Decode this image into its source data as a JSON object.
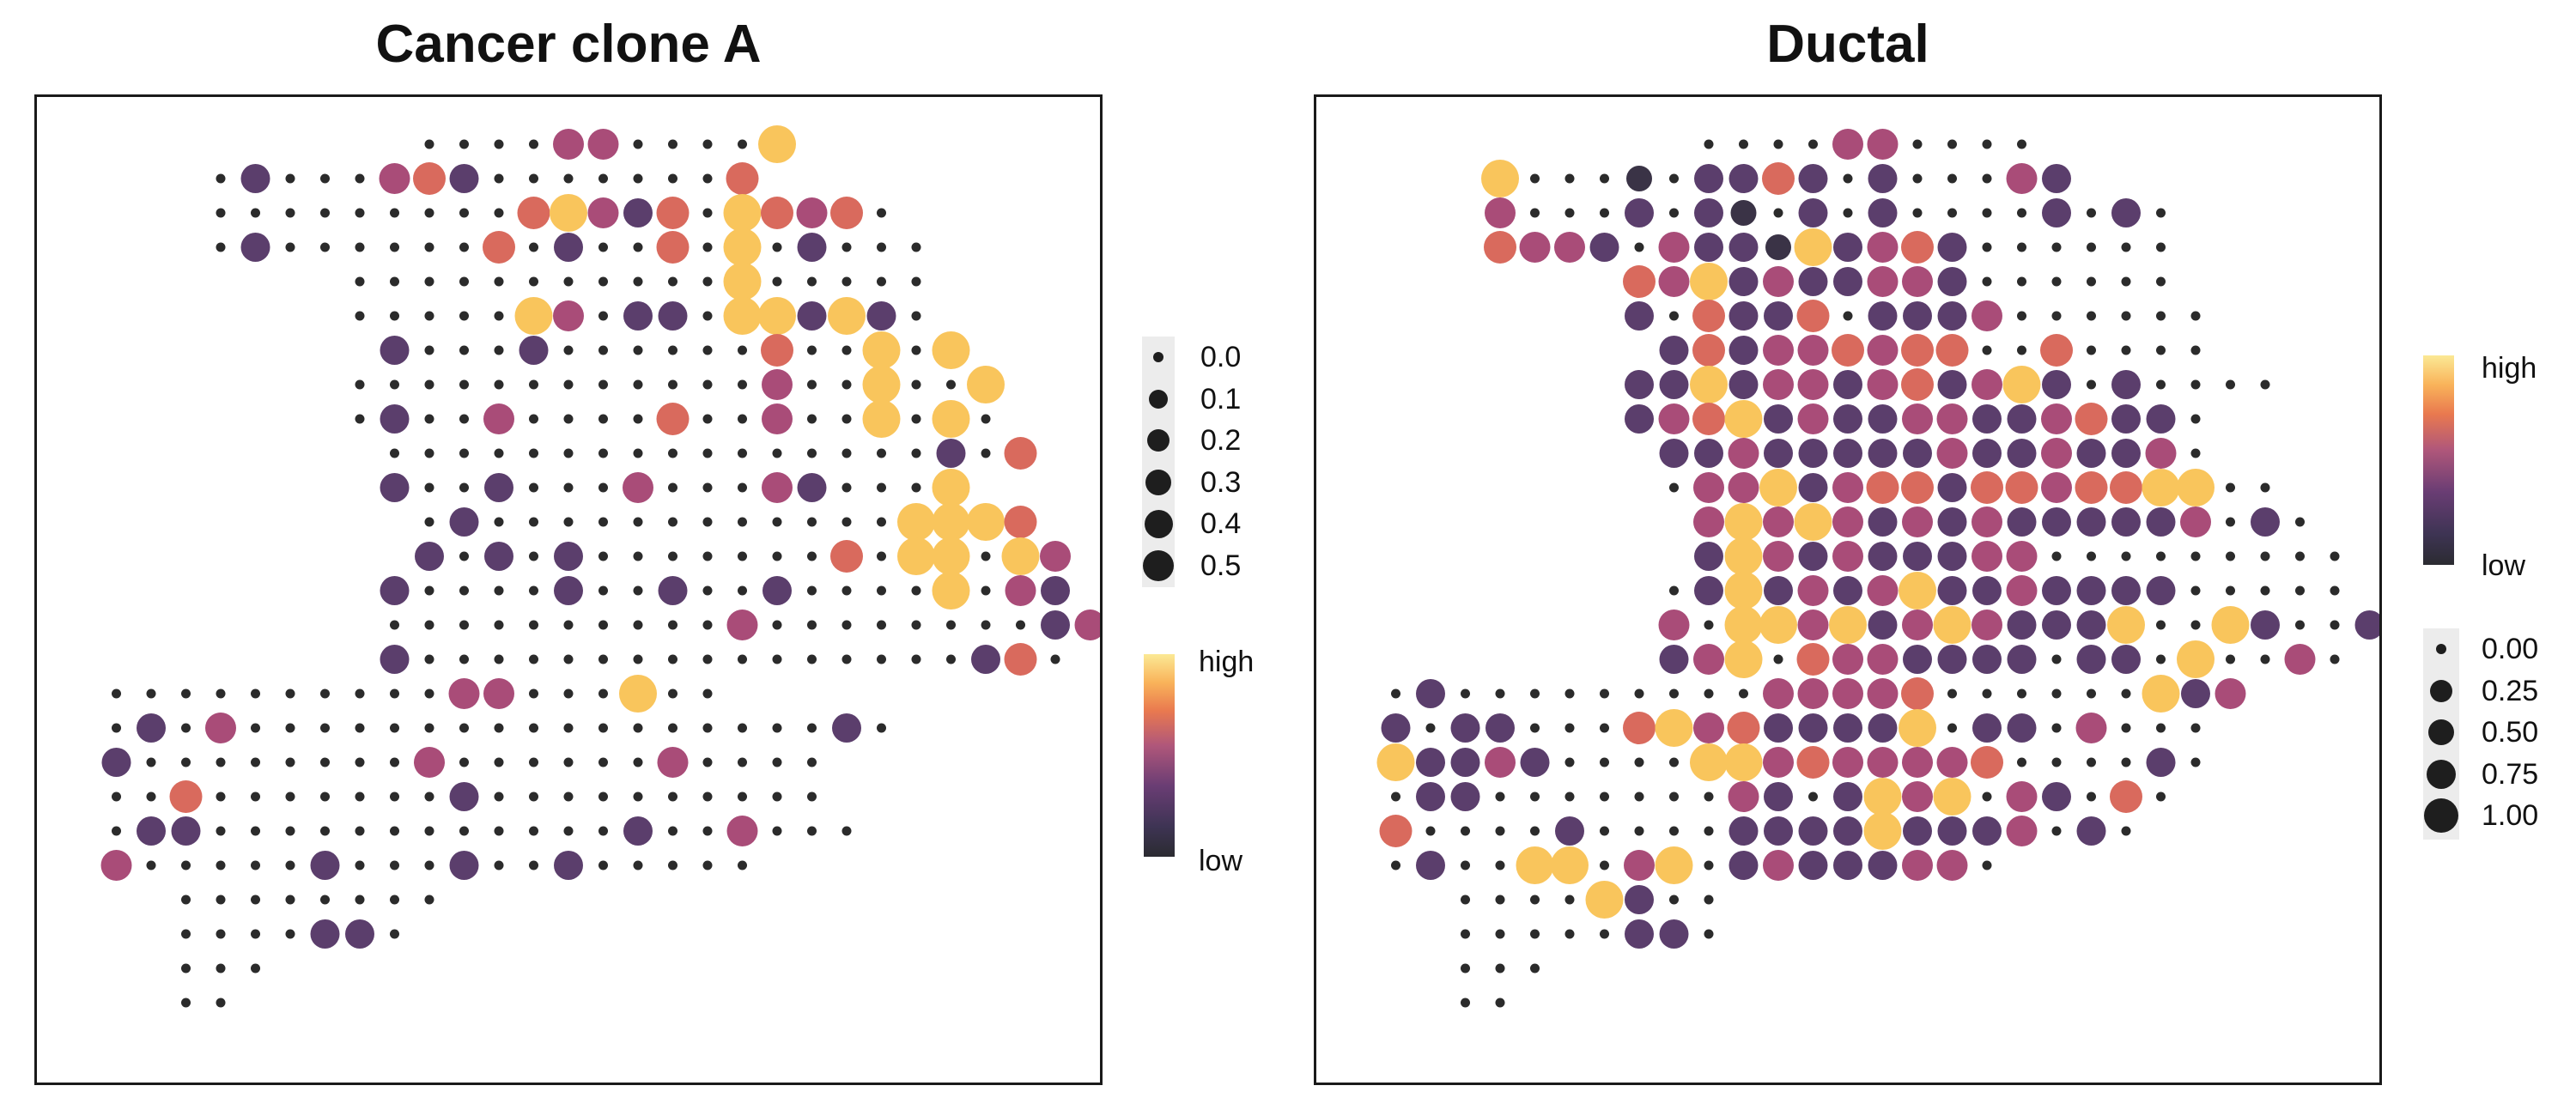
{
  "titles": {
    "a": "Cancer clone A",
    "b": "Ductal"
  },
  "chart_data": [
    {
      "type": "scatter",
      "title": "Cancer clone A",
      "encoding": "spatial spot grid; point size and color show relative score",
      "size_legend": [
        "0.0",
        "0.1",
        "0.2",
        "0.3",
        "0.4",
        "0.5"
      ],
      "color_legend": {
        "high": "high",
        "low": "low"
      },
      "grid_rows": [
        [
          10,
          [
            0,
            0,
            0,
            0,
            3,
            3,
            0,
            0,
            0,
            0,
            5
          ]
        ],
        [
          4,
          [
            0,
            2,
            0,
            0,
            0,
            3,
            4,
            2,
            0,
            0,
            0,
            0,
            0,
            0,
            0,
            4
          ]
        ],
        [
          4,
          [
            0,
            0,
            0,
            0,
            0,
            0,
            0,
            0,
            0,
            4,
            5,
            3,
            2,
            4,
            0,
            5,
            4,
            3,
            4,
            0
          ]
        ],
        [
          4,
          [
            0,
            2,
            0,
            0,
            0,
            0,
            0,
            0,
            4,
            0,
            2,
            0,
            0,
            4,
            0,
            5,
            0,
            2,
            0,
            0,
            0
          ]
        ],
        [
          8,
          [
            0,
            0,
            0,
            0,
            0,
            0,
            0,
            0,
            0,
            0,
            0,
            5,
            0,
            0,
            0,
            0,
            0
          ]
        ],
        [
          8,
          [
            0,
            0,
            0,
            0,
            0,
            5,
            3,
            0,
            2,
            2,
            0,
            5,
            5,
            2,
            5,
            2,
            0
          ]
        ],
        [
          9,
          [
            2,
            0,
            0,
            0,
            2,
            0,
            0,
            0,
            0,
            0,
            0,
            4,
            0,
            0,
            5,
            0,
            5
          ]
        ],
        [
          8,
          [
            0,
            0,
            0,
            0,
            0,
            0,
            0,
            0,
            0,
            0,
            0,
            0,
            3,
            0,
            0,
            5,
            0,
            0,
            5
          ]
        ],
        [
          8,
          [
            0,
            2,
            0,
            0,
            3,
            0,
            0,
            0,
            0,
            4,
            0,
            0,
            3,
            0,
            0,
            5,
            0,
            5,
            0
          ]
        ],
        [
          9,
          [
            0,
            0,
            0,
            0,
            0,
            0,
            0,
            0,
            0,
            0,
            0,
            0,
            0,
            0,
            0,
            0,
            2,
            0,
            4
          ]
        ],
        [
          9,
          [
            2,
            0,
            0,
            2,
            0,
            0,
            0,
            3,
            0,
            0,
            0,
            3,
            2,
            0,
            0,
            0,
            5
          ]
        ],
        [
          10,
          [
            0,
            2,
            0,
            0,
            0,
            0,
            0,
            0,
            0,
            0,
            0,
            0,
            0,
            0,
            5,
            5,
            5,
            4
          ]
        ],
        [
          10,
          [
            2,
            0,
            2,
            0,
            2,
            0,
            0,
            0,
            0,
            0,
            0,
            0,
            4,
            0,
            5,
            5,
            0,
            5,
            3
          ]
        ],
        [
          9,
          [
            2,
            0,
            0,
            0,
            0,
            2,
            0,
            0,
            2,
            0,
            0,
            2,
            0,
            0,
            0,
            0,
            5,
            0,
            3,
            2
          ]
        ],
        [
          9,
          [
            0,
            0,
            0,
            0,
            0,
            0,
            0,
            0,
            0,
            0,
            3,
            0,
            0,
            0,
            0,
            0,
            0,
            0,
            0,
            2,
            3
          ]
        ],
        [
          9,
          [
            2,
            0,
            0,
            0,
            0,
            0,
            0,
            0,
            0,
            0,
            0,
            0,
            0,
            0,
            0,
            0,
            0,
            2,
            4,
            0
          ]
        ],
        [
          1,
          [
            0,
            0,
            0,
            0,
            0,
            0,
            0,
            0,
            0,
            0,
            3,
            3,
            0,
            0,
            0,
            5,
            0,
            0
          ]
        ],
        [
          1,
          [
            0,
            2,
            0,
            3,
            0,
            0,
            0,
            0,
            0,
            0,
            0,
            0,
            0,
            0,
            0,
            0,
            0,
            0,
            0,
            0,
            0,
            2,
            0
          ]
        ],
        [
          1,
          [
            2,
            0,
            0,
            0,
            0,
            0,
            0,
            0,
            0,
            3,
            0,
            0,
            0,
            0,
            0,
            0,
            3,
            0,
            0,
            0,
            0
          ]
        ],
        [
          1,
          [
            0,
            0,
            4,
            0,
            0,
            0,
            0,
            0,
            0,
            0,
            2,
            0,
            0,
            0,
            0,
            0,
            0,
            0,
            0,
            0,
            0
          ]
        ],
        [
          1,
          [
            0,
            2,
            2,
            0,
            0,
            0,
            0,
            0,
            0,
            0,
            0,
            0,
            0,
            0,
            0,
            2,
            0,
            0,
            3,
            0,
            0,
            0
          ]
        ],
        [
          1,
          [
            3,
            0,
            0,
            0,
            0,
            0,
            2,
            0,
            0,
            0,
            2,
            0,
            0,
            2,
            0,
            0,
            0,
            0,
            0
          ]
        ],
        [
          3,
          [
            0,
            0,
            0,
            0,
            0,
            0,
            0,
            0
          ]
        ],
        [
          3,
          [
            0,
            0,
            0,
            0,
            2,
            2,
            0
          ]
        ],
        [
          3,
          [
            0,
            0,
            0
          ]
        ],
        [
          3,
          [
            0,
            0
          ]
        ]
      ]
    },
    {
      "type": "scatter",
      "title": "Ductal",
      "encoding": "spatial spot grid; point size and color show relative score",
      "size_legend": [
        "0.00",
        "0.25",
        "0.50",
        "0.75",
        "1.00"
      ],
      "color_legend": {
        "high": "high",
        "low": "low"
      },
      "grid_rows": [
        [
          10,
          [
            0,
            0,
            0,
            0,
            3,
            3,
            0,
            0,
            0,
            0
          ]
        ],
        [
          4,
          [
            5,
            0,
            0,
            0,
            1,
            0,
            2,
            2,
            4,
            2,
            0,
            2,
            0,
            0,
            0,
            3,
            2
          ]
        ],
        [
          4,
          [
            3,
            0,
            0,
            0,
            2,
            0,
            2,
            1,
            0,
            2,
            0,
            2,
            0,
            0,
            0,
            0,
            2,
            0,
            2,
            0
          ]
        ],
        [
          4,
          [
            4,
            3,
            3,
            2,
            0,
            3,
            2,
            2,
            1,
            5,
            2,
            3,
            4,
            2,
            0,
            0,
            0,
            0,
            0,
            0
          ]
        ],
        [
          8,
          [
            4,
            3,
            5,
            2,
            3,
            2,
            2,
            3,
            3,
            2,
            0,
            0,
            0,
            0,
            0,
            0
          ]
        ],
        [
          8,
          [
            2,
            0,
            4,
            2,
            2,
            4,
            0,
            2,
            2,
            2,
            3,
            0,
            0,
            0,
            0,
            0,
            0
          ]
        ],
        [
          9,
          [
            2,
            4,
            2,
            3,
            3,
            4,
            3,
            4,
            4,
            0,
            0,
            4,
            0,
            0,
            0,
            0
          ]
        ],
        [
          8,
          [
            2,
            2,
            5,
            2,
            3,
            3,
            2,
            3,
            4,
            2,
            3,
            5,
            2,
            0,
            2,
            0,
            0,
            0,
            0
          ]
        ],
        [
          8,
          [
            2,
            3,
            4,
            5,
            2,
            3,
            2,
            2,
            3,
            3,
            2,
            2,
            3,
            4,
            2,
            2,
            0
          ]
        ],
        [
          9,
          [
            2,
            2,
            3,
            2,
            2,
            2,
            2,
            2,
            3,
            2,
            2,
            3,
            2,
            2,
            3,
            0
          ]
        ],
        [
          9,
          [
            0,
            3,
            3,
            5,
            2,
            3,
            4,
            4,
            2,
            4,
            4,
            3,
            4,
            4,
            5,
            5,
            0,
            0
          ]
        ],
        [
          10,
          [
            3,
            5,
            3,
            5,
            3,
            2,
            3,
            2,
            3,
            2,
            2,
            2,
            2,
            2,
            3,
            0,
            2,
            0
          ]
        ],
        [
          10,
          [
            2,
            5,
            3,
            2,
            3,
            2,
            2,
            2,
            3,
            3,
            0,
            0,
            0,
            0,
            0,
            0,
            0,
            0,
            0
          ]
        ],
        [
          9,
          [
            0,
            2,
            5,
            2,
            3,
            2,
            3,
            5,
            2,
            2,
            3,
            2,
            2,
            2,
            2,
            0,
            0,
            0,
            0,
            0
          ]
        ],
        [
          9,
          [
            3,
            0,
            5,
            5,
            3,
            5,
            2,
            3,
            5,
            3,
            2,
            2,
            2,
            5,
            0,
            0,
            5,
            2,
            0,
            0,
            2
          ]
        ],
        [
          9,
          [
            2,
            3,
            5,
            0,
            4,
            3,
            3,
            2,
            2,
            2,
            2,
            0,
            2,
            2,
            0,
            5,
            0,
            0,
            3,
            0
          ]
        ],
        [
          1,
          [
            0,
            2,
            0,
            0,
            0,
            0,
            0,
            0,
            0,
            0,
            0,
            3,
            3,
            3,
            3,
            4,
            0,
            0,
            0,
            0,
            0,
            0,
            5,
            2,
            3
          ]
        ],
        [
          1,
          [
            2,
            0,
            2,
            2,
            0,
            0,
            0,
            4,
            5,
            3,
            4,
            2,
            2,
            2,
            2,
            5,
            0,
            2,
            2,
            0,
            3,
            0,
            0,
            0
          ]
        ],
        [
          1,
          [
            5,
            2,
            2,
            3,
            2,
            0,
            0,
            0,
            0,
            5,
            5,
            3,
            4,
            3,
            3,
            3,
            3,
            4,
            0,
            0,
            0,
            0,
            2,
            0
          ]
        ],
        [
          1,
          [
            0,
            2,
            2,
            0,
            0,
            0,
            0,
            0,
            0,
            0,
            3,
            2,
            0,
            2,
            5,
            3,
            5,
            0,
            3,
            2,
            0,
            4,
            0
          ]
        ],
        [
          1,
          [
            4,
            0,
            0,
            0,
            0,
            2,
            0,
            0,
            0,
            0,
            2,
            2,
            2,
            2,
            5,
            2,
            2,
            2,
            3,
            0,
            2,
            0
          ]
        ],
        [
          1,
          [
            0,
            2,
            0,
            0,
            5,
            5,
            0,
            3,
            5,
            0,
            2,
            3,
            2,
            2,
            2,
            3,
            3,
            0
          ]
        ],
        [
          3,
          [
            0,
            0,
            0,
            0,
            5,
            2,
            0,
            0
          ]
        ],
        [
          3,
          [
            0,
            0,
            0,
            0,
            0,
            2,
            2,
            0
          ]
        ],
        [
          3,
          [
            0,
            0,
            0
          ]
        ],
        [
          3,
          [
            0,
            0
          ]
        ]
      ]
    }
  ],
  "legend_a": {
    "size_labels": [
      "0.0",
      "0.1",
      "0.2",
      "0.3",
      "0.4",
      "0.5"
    ],
    "high": "high",
    "low": "low"
  },
  "legend_b": {
    "size_labels": [
      "0.00",
      "0.25",
      "0.50",
      "0.75",
      "1.00"
    ],
    "high": "high",
    "low": "low"
  },
  "colors": {
    "level_0": "#2b2b2b",
    "level_1": "#3a3346",
    "level_2": "#5b3e6c",
    "level_3": "#a94c78",
    "level_4": "#d96a5d",
    "level_5": "#f9c55c",
    "level_6": "#f49a4c",
    "frame": "#1a1a1a",
    "legend_bg": "#ececec"
  }
}
